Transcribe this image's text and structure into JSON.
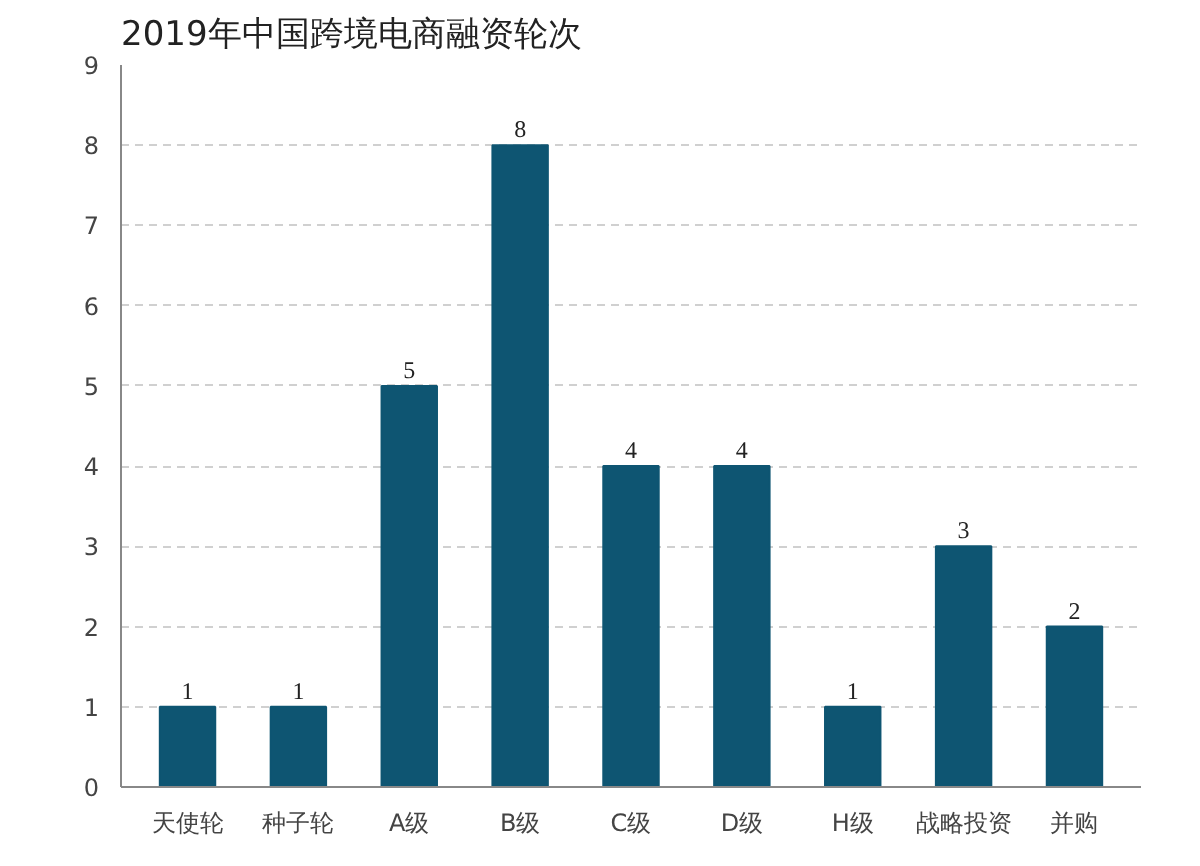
{
  "chart_data": {
    "type": "bar",
    "title": "2019年中国跨境电商融资轮次",
    "categories": [
      "天使轮",
      "种子轮",
      "A级",
      "B级",
      "C级",
      "D级",
      "H级",
      "战略投资",
      "并购"
    ],
    "values": [
      1,
      1,
      5,
      8,
      4,
      4,
      1,
      3,
      2
    ],
    "color": "#0e5572",
    "ylim": [
      0,
      9
    ],
    "yticks": [
      0,
      1,
      2,
      3,
      4,
      5,
      6,
      7,
      8,
      9
    ],
    "grid": "y",
    "data_labels": true
  }
}
